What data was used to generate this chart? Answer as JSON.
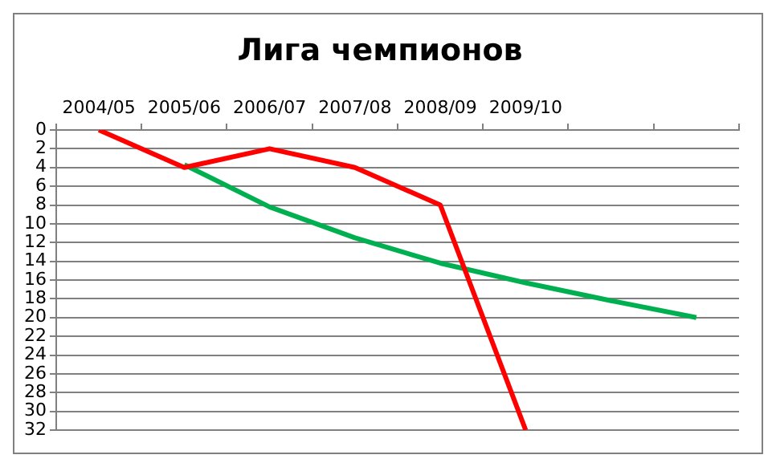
{
  "chart_data": {
    "type": "line",
    "title": "Лига чемпионов",
    "categories": [
      "2004/05",
      "2005/06",
      "2006/07",
      "2007/08",
      "2008/09",
      "2009/10",
      null,
      null
    ],
    "series": [
      {
        "color": "#ff0000",
        "values": [
          0,
          4,
          2,
          4,
          8,
          32,
          null,
          null
        ]
      },
      {
        "color": "#00b050",
        "values": [
          null,
          3.7,
          8.2,
          11.5,
          14.2,
          16.3,
          18.2,
          20
        ]
      }
    ],
    "ylim": [
      32,
      0
    ],
    "yticks": [
      0,
      2,
      4,
      6,
      8,
      10,
      12,
      14,
      16,
      18,
      20,
      22,
      24,
      26,
      28,
      30,
      32
    ],
    "grid": "y",
    "legend": false,
    "marker": "none"
  }
}
